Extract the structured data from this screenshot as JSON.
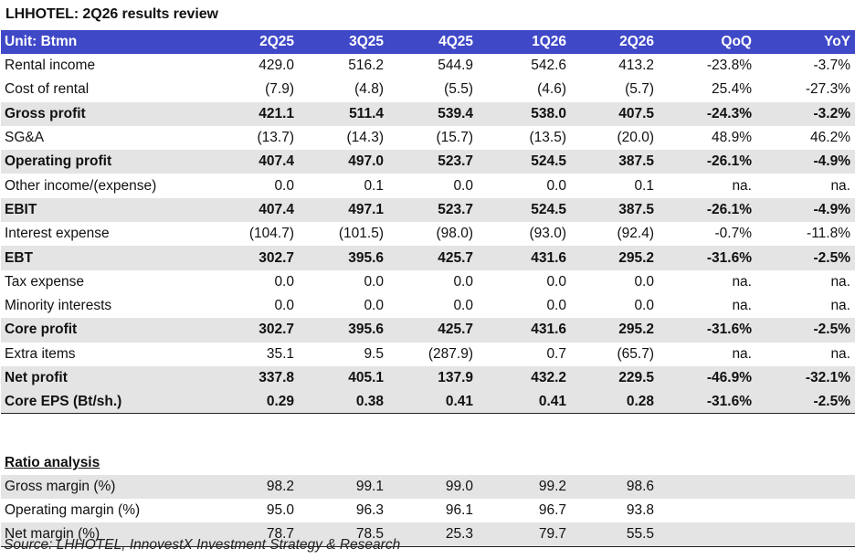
{
  "title": "LHHOTEL: 2Q26 results review",
  "header": {
    "label": "Unit: Btmn",
    "columns": [
      "2Q25",
      "3Q25",
      "4Q25",
      "1Q26",
      "2Q26",
      "QoQ",
      "YoY"
    ]
  },
  "rows": [
    {
      "label": "Rental income",
      "values": [
        "429.0",
        "516.2",
        "544.9",
        "542.6",
        "413.2",
        "-23.8%",
        "-3.7%"
      ],
      "bold": false,
      "shade": false
    },
    {
      "label": "Cost of rental",
      "values": [
        "(7.9)",
        "(4.8)",
        "(5.5)",
        "(4.6)",
        "(5.7)",
        "25.4%",
        "-27.3%"
      ],
      "bold": false,
      "shade": false
    },
    {
      "label": "Gross profit",
      "values": [
        "421.1",
        "511.4",
        "539.4",
        "538.0",
        "407.5",
        "-24.3%",
        "-3.2%"
      ],
      "bold": true,
      "shade": true
    },
    {
      "label": "SG&A",
      "values": [
        "(13.7)",
        "(14.3)",
        "(15.7)",
        "(13.5)",
        "(20.0)",
        "48.9%",
        "46.2%"
      ],
      "bold": false,
      "shade": false
    },
    {
      "label": "Operating profit",
      "values": [
        "407.4",
        "497.0",
        "523.7",
        "524.5",
        "387.5",
        "-26.1%",
        "-4.9%"
      ],
      "bold": true,
      "shade": true
    },
    {
      "label": "Other income/(expense)",
      "values": [
        "0.0",
        "0.1",
        "0.0",
        "0.0",
        "0.1",
        "na.",
        "na."
      ],
      "bold": false,
      "shade": false
    },
    {
      "label": "EBIT",
      "values": [
        "407.4",
        "497.1",
        "523.7",
        "524.5",
        "387.5",
        "-26.1%",
        "-4.9%"
      ],
      "bold": true,
      "shade": true
    },
    {
      "label": "Interest expense",
      "values": [
        "(104.7)",
        "(101.5)",
        "(98.0)",
        "(93.0)",
        "(92.4)",
        "-0.7%",
        "-11.8%"
      ],
      "bold": false,
      "shade": false
    },
    {
      "label": "EBT",
      "values": [
        "302.7",
        "395.6",
        "425.7",
        "431.6",
        "295.2",
        "-31.6%",
        "-2.5%"
      ],
      "bold": true,
      "shade": true
    },
    {
      "label": "Tax expense",
      "values": [
        "0.0",
        "0.0",
        "0.0",
        "0.0",
        "0.0",
        "na.",
        "na."
      ],
      "bold": false,
      "shade": false
    },
    {
      "label": "Minority interests",
      "values": [
        "0.0",
        "0.0",
        "0.0",
        "0.0",
        "0.0",
        "na.",
        "na."
      ],
      "bold": false,
      "shade": false
    },
    {
      "label": "Core profit",
      "values": [
        "302.7",
        "395.6",
        "425.7",
        "431.6",
        "295.2",
        "-31.6%",
        "-2.5%"
      ],
      "bold": true,
      "shade": true
    },
    {
      "label": "Extra items",
      "values": [
        "35.1",
        "9.5",
        "(287.9)",
        "0.7",
        "(65.7)",
        "na.",
        "na."
      ],
      "bold": false,
      "shade": false
    },
    {
      "label": "Net profit",
      "values": [
        "337.8",
        "405.1",
        "137.9",
        "432.2",
        "229.5",
        "-46.9%",
        "-32.1%"
      ],
      "bold": true,
      "shade": true
    },
    {
      "label": "Core EPS (Bt/sh.)",
      "values": [
        "0.29",
        "0.38",
        "0.41",
        "0.41",
        "0.28",
        "-31.6%",
        "-2.5%"
      ],
      "bold": true,
      "shade": true
    }
  ],
  "ratio_section": {
    "title": "Ratio analysis",
    "rows": [
      {
        "label": "Gross margin (%)",
        "values": [
          "98.2",
          "99.1",
          "99.0",
          "99.2",
          "98.6"
        ],
        "shade": true
      },
      {
        "label": "Operating margin (%)",
        "values": [
          "95.0",
          "96.3",
          "96.1",
          "96.7",
          "93.8"
        ],
        "shade": false
      },
      {
        "label": "Net margin (%)",
        "values": [
          "78.7",
          "78.5",
          "25.3",
          "79.7",
          "55.5"
        ],
        "shade": true
      }
    ]
  },
  "source": "Source: LHHOTEL, InnovestX Investment Strategy & Research",
  "colors": {
    "header_bg": "#3f48c7",
    "header_text": "#ffffff",
    "row_shade": "#e4e4e4"
  }
}
